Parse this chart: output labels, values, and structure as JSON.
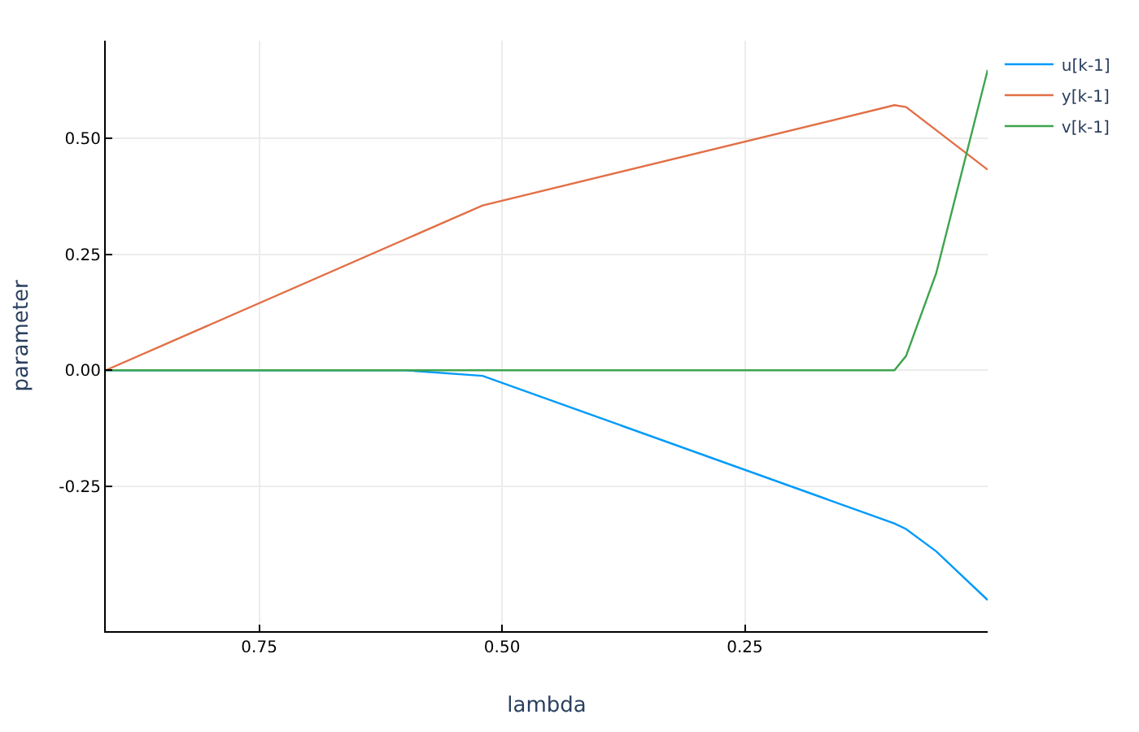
{
  "chart_data": {
    "type": "line",
    "xlabel": "lambda",
    "ylabel": "parameter",
    "xlim": [
      0.908,
      0
    ],
    "ylim": [
      -0.562,
      0.71
    ],
    "xticks": [
      {
        "value": 0.75,
        "label": "0.75"
      },
      {
        "value": 0.5,
        "label": "0.50"
      },
      {
        "value": 0.25,
        "label": "0.25"
      }
    ],
    "yticks": [
      {
        "value": -0.25,
        "label": "-0.25"
      },
      {
        "value": 0,
        "label": "0.00"
      },
      {
        "value": 0.25,
        "label": "0.25"
      },
      {
        "value": 0.5,
        "label": "0.50"
      }
    ],
    "grid": true,
    "legend": "top right",
    "line_style": "solid",
    "marker": "none",
    "series": [
      {
        "name": "u[k-1]",
        "color": "#009af9",
        "x": [
          0.908,
          0.6,
          0.52,
          0.096,
          0.084,
          0.053,
          0
        ],
        "values": [
          0,
          0,
          -0.012,
          -0.33,
          -0.342,
          -0.39,
          -0.495
        ]
      },
      {
        "name": "y[k-1]",
        "color": "#e26f46",
        "x": [
          0.908,
          0.52,
          0.096,
          0.084,
          0
        ],
        "values": [
          0,
          0.355,
          0.571,
          0.567,
          0.432
        ]
      },
      {
        "name": "v[k-1]",
        "color": "#3da44d",
        "x": [
          0.908,
          0.096,
          0.084,
          0.053,
          0
        ],
        "values": [
          0,
          0,
          0.031,
          0.209,
          0.647
        ]
      }
    ]
  }
}
